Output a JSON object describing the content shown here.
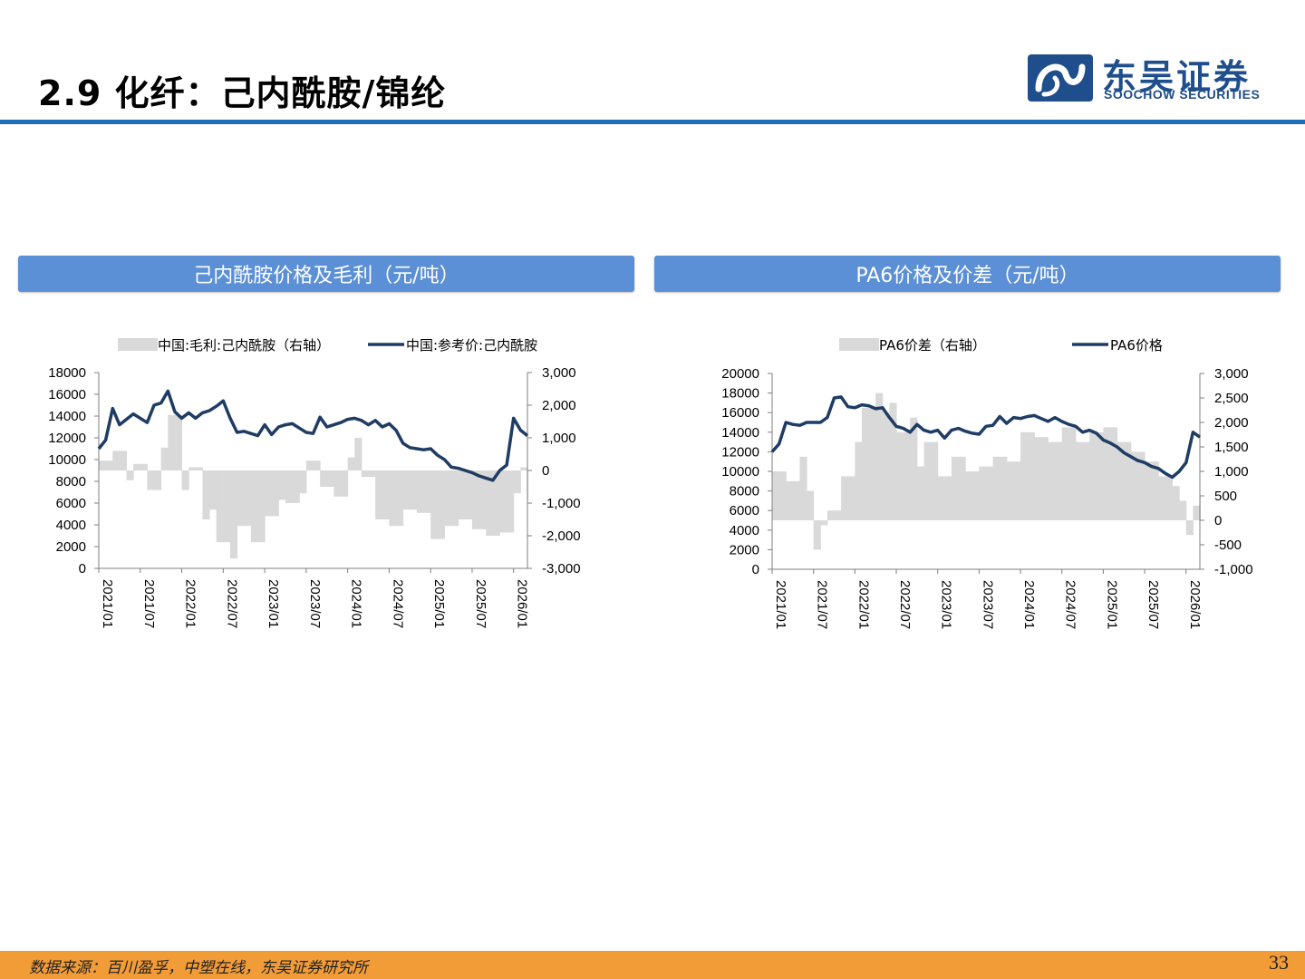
{
  "page": {
    "title": "2.9 化纤：己内酰胺/锦纶",
    "logo_name": "东吴证券",
    "logo_sub": "SOOCHOW SECURITIES",
    "source": "数据来源：百川盈孚，中塑在线，东吴证券研究所",
    "page_number": "33",
    "accent_color": "#1f6fb8",
    "header_color": "#5b8fd6",
    "footer_color": "#f29c38"
  },
  "panels": [
    {
      "header": "己内酰胺价格及毛利（元/吨）"
    },
    {
      "header": "PA6价格及价差（元/吨）"
    }
  ],
  "chart_data": [
    {
      "type": "line",
      "title": "",
      "x_ticks": [
        "2021/01",
        "2021/07",
        "2022/01",
        "2022/07",
        "2023/01",
        "2023/07",
        "2024/01",
        "2024/07",
        "2025/01",
        "2025/07",
        "2026/01"
      ],
      "x_range": [
        "2021/01",
        "2026/03"
      ],
      "ylim": [
        0,
        18000
      ],
      "y_ticks": [
        "0",
        "2000",
        "4000",
        "6000",
        "8000",
        "10000",
        "12000",
        "14000",
        "16000",
        "18000"
      ],
      "y2lim": [
        -3000,
        3000
      ],
      "y2_ticks": [
        "-3,000",
        "-2,000",
        "-1,000",
        "0",
        "1,000",
        "2,000",
        "3,000"
      ],
      "legend_position": "top",
      "series": [
        {
          "name": "中国:毛利:己内酰胺（右轴）",
          "kind": "area",
          "axis": "right",
          "color": "#d9d9d9",
          "x": [
            "2021/01",
            "2021/03",
            "2021/05",
            "2021/06",
            "2021/08",
            "2021/10",
            "2021/11",
            "2022/01",
            "2022/02",
            "2022/04",
            "2022/05",
            "2022/06",
            "2022/08",
            "2022/09",
            "2022/11",
            "2023/01",
            "2023/03",
            "2023/04",
            "2023/06",
            "2023/07",
            "2023/09",
            "2023/11",
            "2024/01",
            "2024/02",
            "2024/03",
            "2024/05",
            "2024/07",
            "2024/09",
            "2024/11",
            "2025/01",
            "2025/03",
            "2025/05",
            "2025/07",
            "2025/09",
            "2025/11",
            "2026/01",
            "2026/02",
            "2026/03"
          ],
          "values": [
            300,
            600,
            -300,
            200,
            -600,
            700,
            1700,
            -600,
            100,
            -1500,
            -1200,
            -2200,
            -2700,
            -1700,
            -2200,
            -1400,
            -900,
            -1000,
            -700,
            300,
            -500,
            -800,
            400,
            1000,
            -200,
            -1500,
            -1700,
            -1200,
            -1300,
            -2100,
            -1700,
            -1500,
            -1800,
            -2000,
            -1900,
            -700,
            100,
            -900
          ]
        },
        {
          "name": "中国:参考价:己内酰胺",
          "kind": "line",
          "axis": "left",
          "color": "#1f3c64",
          "x": [
            "2021/01",
            "2021/02",
            "2021/03",
            "2021/04",
            "2021/06",
            "2021/08",
            "2021/09",
            "2021/10",
            "2021/11",
            "2021/12",
            "2022/01",
            "2022/02",
            "2022/03",
            "2022/04",
            "2022/05",
            "2022/06",
            "2022/07",
            "2022/08",
            "2022/09",
            "2022/10",
            "2022/11",
            "2022/12",
            "2023/01",
            "2023/02",
            "2023/03",
            "2023/04",
            "2023/05",
            "2023/06",
            "2023/07",
            "2023/08",
            "2023/09",
            "2023/10",
            "2023/11",
            "2023/12",
            "2024/01",
            "2024/02",
            "2024/03",
            "2024/04",
            "2024/05",
            "2024/06",
            "2024/07",
            "2024/08",
            "2024/09",
            "2024/10",
            "2024/11",
            "2024/12",
            "2025/01",
            "2025/02",
            "2025/03",
            "2025/04",
            "2025/05",
            "2025/06",
            "2025/07",
            "2025/08",
            "2025/09",
            "2025/10",
            "2025/11",
            "2025/12",
            "2026/01",
            "2026/02",
            "2026/03"
          ],
          "values": [
            11000,
            11800,
            14700,
            13200,
            14200,
            13400,
            15000,
            15200,
            16300,
            14400,
            13800,
            14300,
            13800,
            14300,
            14500,
            14900,
            15400,
            13800,
            12500,
            12600,
            12400,
            12200,
            13200,
            12300,
            13000,
            13200,
            13300,
            12900,
            12500,
            12400,
            13900,
            13000,
            13200,
            13400,
            13700,
            13800,
            13600,
            13200,
            13600,
            13000,
            13300,
            12700,
            11500,
            11100,
            11000,
            10900,
            11000,
            10400,
            10000,
            9300,
            9200,
            9000,
            8800,
            8500,
            8300,
            8100,
            9000,
            9500,
            13800,
            12700,
            12200
          ]
        }
      ]
    },
    {
      "type": "line",
      "title": "",
      "x_ticks": [
        "2021/01",
        "2021/07",
        "2022/01",
        "2022/07",
        "2023/01",
        "2023/07",
        "2024/01",
        "2024/07",
        "2025/01",
        "2025/07",
        "2026/01"
      ],
      "x_range": [
        "2021/01",
        "2026/03"
      ],
      "ylim": [
        0,
        20000
      ],
      "y_ticks": [
        "0",
        "2000",
        "4000",
        "6000",
        "8000",
        "10000",
        "12000",
        "14000",
        "16000",
        "18000",
        "20000"
      ],
      "y2lim": [
        -1000,
        3000
      ],
      "y2_ticks": [
        "-1,000",
        "-500",
        "0",
        "500",
        "1,000",
        "1,500",
        "2,000",
        "2,500",
        "3,000"
      ],
      "legend_position": "top",
      "series": [
        {
          "name": "PA6价差（右轴）",
          "kind": "area",
          "axis": "right",
          "color": "#d9d9d9",
          "x": [
            "2021/01",
            "2021/03",
            "2021/05",
            "2021/06",
            "2021/07",
            "2021/08",
            "2021/09",
            "2021/11",
            "2022/01",
            "2022/02",
            "2022/04",
            "2022/05",
            "2022/06",
            "2022/07",
            "2022/09",
            "2022/10",
            "2022/11",
            "2023/01",
            "2023/03",
            "2023/05",
            "2023/07",
            "2023/09",
            "2023/11",
            "2024/01",
            "2024/03",
            "2024/05",
            "2024/07",
            "2024/09",
            "2024/11",
            "2025/01",
            "2025/03",
            "2025/05",
            "2025/07",
            "2025/09",
            "2025/11",
            "2025/12",
            "2026/01",
            "2026/02",
            "2026/03"
          ],
          "values": [
            1000,
            800,
            1300,
            600,
            -600,
            -100,
            200,
            900,
            1600,
            2300,
            2600,
            2200,
            2400,
            1800,
            2100,
            1100,
            1600,
            900,
            1300,
            1000,
            1100,
            1300,
            1200,
            1800,
            1700,
            1600,
            1900,
            1600,
            1800,
            1900,
            1600,
            1400,
            1200,
            900,
            700,
            400,
            -300,
            300,
            500
          ]
        },
        {
          "name": "PA6价格",
          "kind": "line",
          "axis": "left",
          "color": "#1f3c64",
          "x": [
            "2021/01",
            "2021/02",
            "2021/03",
            "2021/04",
            "2021/05",
            "2021/06",
            "2021/08",
            "2021/09",
            "2021/10",
            "2021/11",
            "2021/12",
            "2022/01",
            "2022/02",
            "2022/03",
            "2022/04",
            "2022/05",
            "2022/06",
            "2022/07",
            "2022/08",
            "2022/09",
            "2022/10",
            "2022/11",
            "2022/12",
            "2023/01",
            "2023/02",
            "2023/03",
            "2023/04",
            "2023/05",
            "2023/06",
            "2023/07",
            "2023/08",
            "2023/09",
            "2023/10",
            "2023/11",
            "2023/12",
            "2024/01",
            "2024/02",
            "2024/03",
            "2024/04",
            "2024/05",
            "2024/06",
            "2024/07",
            "2024/08",
            "2024/09",
            "2024/10",
            "2024/11",
            "2024/12",
            "2025/01",
            "2025/02",
            "2025/03",
            "2025/04",
            "2025/05",
            "2025/06",
            "2025/07",
            "2025/08",
            "2025/09",
            "2025/10",
            "2025/11",
            "2025/12",
            "2026/01",
            "2026/02",
            "2026/03"
          ],
          "values": [
            12000,
            12800,
            15000,
            14800,
            14700,
            15000,
            15000,
            15500,
            17500,
            17600,
            16600,
            16500,
            16800,
            16700,
            16400,
            16500,
            15500,
            14600,
            14400,
            14000,
            14800,
            14200,
            14000,
            14200,
            13400,
            14200,
            14400,
            14100,
            13900,
            13800,
            14600,
            14700,
            15600,
            14900,
            15500,
            15400,
            15600,
            15700,
            15400,
            15100,
            15500,
            15100,
            14800,
            14600,
            14000,
            14200,
            13900,
            13200,
            12900,
            12500,
            11900,
            11500,
            11100,
            10900,
            10500,
            10300,
            9800,
            9400,
            10000,
            10900,
            14000,
            13500
          ]
        }
      ]
    }
  ]
}
